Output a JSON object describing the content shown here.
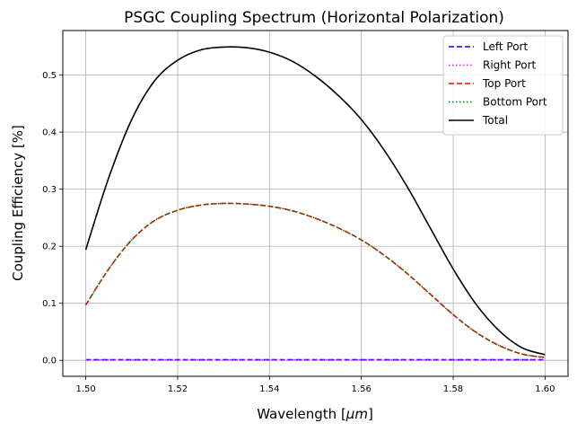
{
  "chart_data": {
    "type": "line",
    "title": "PSGC Coupling Spectrum (Horizontal Polarization)",
    "xlabel_prefix": "Wavelength [",
    "xlabel_unit": "μm",
    "xlabel_suffix": "]",
    "ylabel": "Coupling Efficiency [%]",
    "xlim": [
      1.495,
      1.605
    ],
    "ylim": [
      -0.028,
      0.578
    ],
    "xticks": [
      1.5,
      1.52,
      1.54,
      1.56,
      1.58,
      1.6
    ],
    "xtick_labels": [
      "1.50",
      "1.52",
      "1.54",
      "1.56",
      "1.58",
      "1.60"
    ],
    "yticks": [
      0.0,
      0.1,
      0.2,
      0.3,
      0.4,
      0.5
    ],
    "ytick_labels": [
      "0.0",
      "0.1",
      "0.2",
      "0.3",
      "0.4",
      "0.5"
    ],
    "grid": true,
    "legend_position": "top-right",
    "x": [
      1.5,
      1.505,
      1.51,
      1.515,
      1.52,
      1.525,
      1.53,
      1.535,
      1.54,
      1.545,
      1.55,
      1.555,
      1.56,
      1.565,
      1.57,
      1.575,
      1.58,
      1.585,
      1.59,
      1.595,
      1.6
    ],
    "series": [
      {
        "name": "Left Port",
        "color": "#0000ff",
        "style": "dashed",
        "values": [
          0.001,
          0.001,
          0.001,
          0.001,
          0.001,
          0.001,
          0.001,
          0.001,
          0.001,
          0.001,
          0.001,
          0.001,
          0.001,
          0.001,
          0.001,
          0.001,
          0.001,
          0.001,
          0.001,
          0.001,
          0.001
        ]
      },
      {
        "name": "Right Port",
        "color": "#ff00ff",
        "style": "dotted",
        "values": [
          0.001,
          0.001,
          0.001,
          0.001,
          0.001,
          0.001,
          0.001,
          0.001,
          0.001,
          0.001,
          0.001,
          0.001,
          0.001,
          0.001,
          0.001,
          0.001,
          0.001,
          0.001,
          0.001,
          0.001,
          0.001
        ]
      },
      {
        "name": "Top Port",
        "color": "#ff0000",
        "style": "dashed",
        "values": [
          0.097,
          0.16,
          0.211,
          0.245,
          0.263,
          0.272,
          0.275,
          0.274,
          0.27,
          0.262,
          0.249,
          0.232,
          0.211,
          0.184,
          0.152,
          0.116,
          0.08,
          0.049,
          0.026,
          0.011,
          0.005
        ]
      },
      {
        "name": "Bottom Port",
        "color": "#008000",
        "style": "dotted",
        "values": [
          0.097,
          0.16,
          0.211,
          0.245,
          0.263,
          0.272,
          0.275,
          0.274,
          0.27,
          0.262,
          0.249,
          0.232,
          0.211,
          0.184,
          0.152,
          0.116,
          0.08,
          0.049,
          0.026,
          0.011,
          0.005
        ]
      },
      {
        "name": "Total",
        "color": "#000000",
        "style": "solid",
        "values": [
          0.194,
          0.32,
          0.422,
          0.49,
          0.526,
          0.544,
          0.549,
          0.548,
          0.54,
          0.524,
          0.498,
          0.464,
          0.422,
          0.368,
          0.304,
          0.232,
          0.16,
          0.098,
          0.052,
          0.022,
          0.01
        ]
      }
    ]
  }
}
